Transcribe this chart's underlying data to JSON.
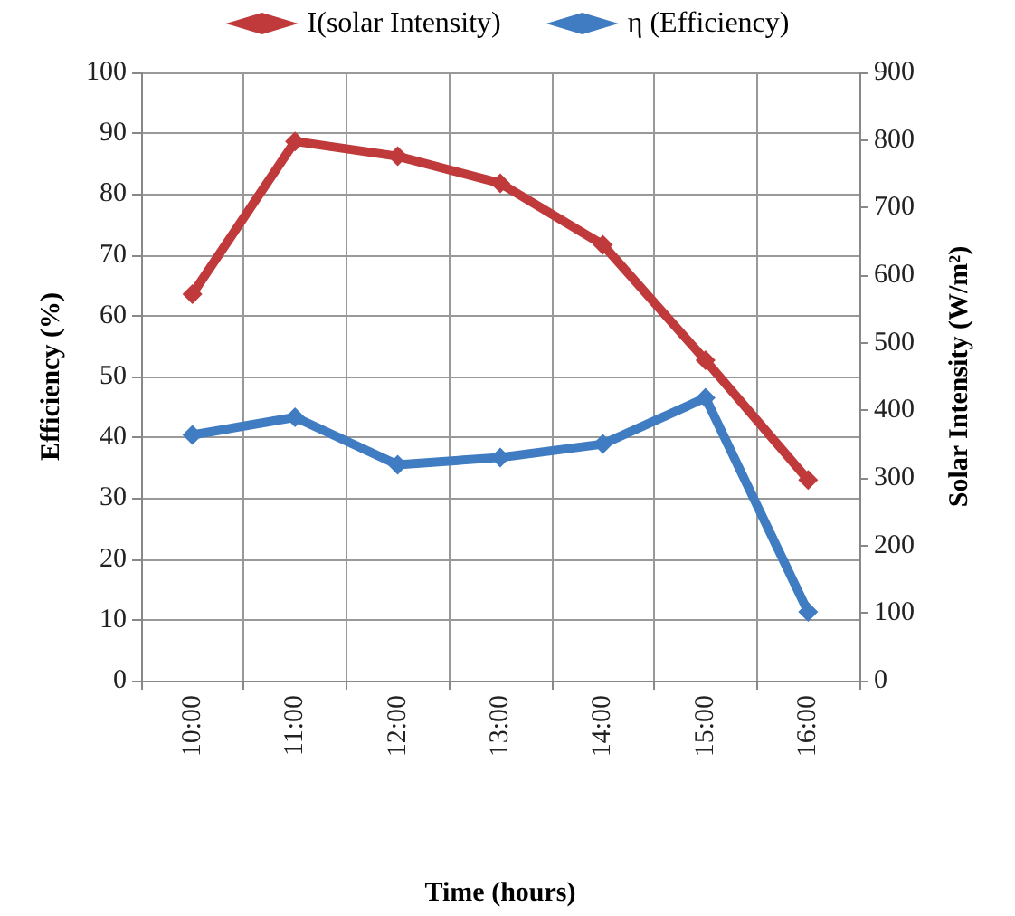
{
  "chart_data": {
    "type": "line",
    "xlabel": "Time (hours)",
    "ylabel": "Efficiency (%)",
    "y2label": "Solar Intensity (W/m²)",
    "categories": [
      "10:00",
      "11:00",
      "12:00",
      "13:00",
      "14:00",
      "15:00",
      "16:00"
    ],
    "series": [
      {
        "name": "I(solar Intensity)",
        "color": "#c0393b",
        "axis": "y2",
        "values": [
          572,
          798,
          776,
          736,
          645,
          474,
          297
        ]
      },
      {
        "name": "η (Efficiency)",
        "color": "#3f7cc2",
        "values": [
          40.4,
          43.3,
          35.5,
          36.7,
          38.9,
          46.5,
          11.3
        ]
      }
    ],
    "ylim": [
      0,
      100
    ],
    "yticks": [
      0,
      10,
      20,
      30,
      40,
      50,
      60,
      70,
      80,
      90,
      100
    ],
    "y2lim": [
      0,
      900
    ],
    "y2ticks": [
      0,
      100,
      200,
      300,
      400,
      500,
      600,
      700,
      800,
      900
    ],
    "grid": true,
    "legend": "top",
    "marker": "diamond",
    "line_style": "solid"
  }
}
